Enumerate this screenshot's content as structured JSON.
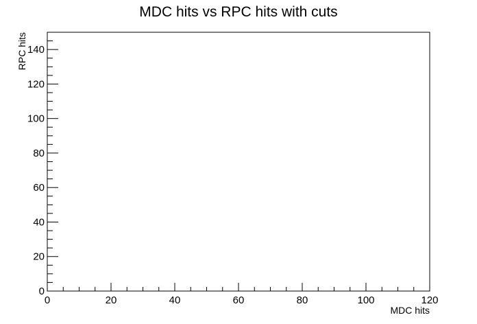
{
  "chart_data": {
    "type": "scatter",
    "title": "MDC hits vs RPC hits with cuts",
    "xlabel": "MDC hits",
    "ylabel": "RPC hits",
    "xlim": [
      0,
      120
    ],
    "ylim": [
      0,
      150
    ],
    "x_major_ticks": [
      0,
      20,
      40,
      60,
      80,
      100,
      120
    ],
    "y_major_ticks": [
      0,
      20,
      40,
      60,
      80,
      100,
      120,
      140
    ],
    "x_minor_step": 5,
    "y_minor_step": 5,
    "grid": false,
    "legend": "none",
    "series": [
      {
        "points": []
      }
    ]
  }
}
